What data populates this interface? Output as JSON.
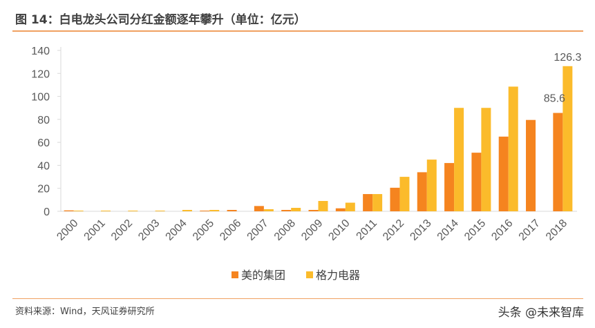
{
  "title": "图 14：白电龙头公司分红金额逐年攀升（单位：亿元）",
  "source": "资料来源：Wind，天风证券研究所",
  "watermark": "头条 @未来智库",
  "chart_data": {
    "type": "bar",
    "title": "",
    "xlabel": "",
    "ylabel": "",
    "ylim": [
      0,
      140
    ],
    "yticks": [
      0,
      20,
      40,
      60,
      80,
      100,
      120,
      140
    ],
    "grid": false,
    "legend_position": "bottom",
    "categories": [
      "2000",
      "2001",
      "2002",
      "2003",
      "2004",
      "2005",
      "2006",
      "2007",
      "2008",
      "2009",
      "2010",
      "2011",
      "2012",
      "2013",
      "2014",
      "2015",
      "2016",
      "2017",
      "2018"
    ],
    "series": [
      {
        "name": "美的集团",
        "color": "#f5841f",
        "values": [
          0.8,
          0,
          0,
          0,
          0,
          0.6,
          1.2,
          4.6,
          1.2,
          1.2,
          2.6,
          15,
          20.5,
          34,
          42,
          51,
          65,
          79.5,
          85.6
        ]
      },
      {
        "name": "格力电器",
        "color": "#fbbb2b",
        "values": [
          0.6,
          0.6,
          0.6,
          0.6,
          1.2,
          1.2,
          0,
          1.8,
          3,
          9,
          7.5,
          15,
          30,
          45,
          90,
          90,
          108.5,
          0,
          126.3
        ]
      }
    ],
    "data_labels": [
      {
        "series": "美的集团",
        "category": "2018",
        "text": "85.6"
      },
      {
        "series": "格力电器",
        "category": "2018",
        "text": "126.3"
      }
    ]
  }
}
